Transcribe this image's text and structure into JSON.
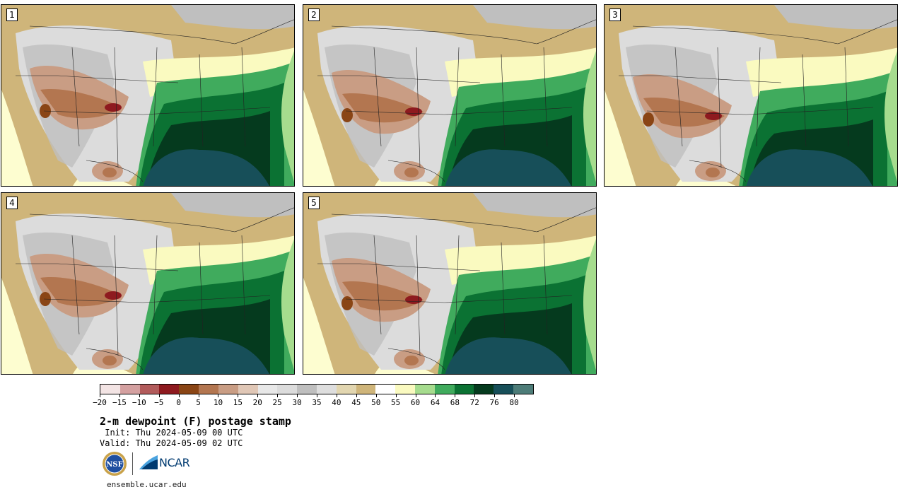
{
  "stamps": [
    {
      "number": "1"
    },
    {
      "number": "2"
    },
    {
      "number": "3"
    },
    {
      "number": "4"
    },
    {
      "number": "5"
    }
  ],
  "legend": {
    "colors": [
      "#f3e4e4",
      "#d4a0a0",
      "#b25b5b",
      "#8e1a1f",
      "#8a4515",
      "#b37650",
      "#c99d84",
      "#e0c7b6",
      "#e8e8e8",
      "#dcdcdc",
      "#bfbfbf",
      "#dedede",
      "#e2d6b0",
      "#cfb57a",
      "#ffffff",
      "#fafac0",
      "#a6dc8e",
      "#40ab5d",
      "#0b7233",
      "#053a1e",
      "#174f59",
      "#4d7c78"
    ],
    "ticks": [
      "−20",
      "−15",
      "−10",
      "−5",
      "0",
      "5",
      "10",
      "15",
      "20",
      "25",
      "30",
      "35",
      "40",
      "45",
      "50",
      "55",
      "60",
      "64",
      "68",
      "72",
      "76",
      "80"
    ]
  },
  "title": "2-m dewpoint (F) postage stamp",
  "init": " Init: Thu 2024-05-09 00 UTC",
  "valid": "Valid: Thu 2024-05-09 02 UTC",
  "logos": {
    "nsf_text": "NSF",
    "ncar_text": "NCAR"
  },
  "site": "ensemble.ucar.edu"
}
